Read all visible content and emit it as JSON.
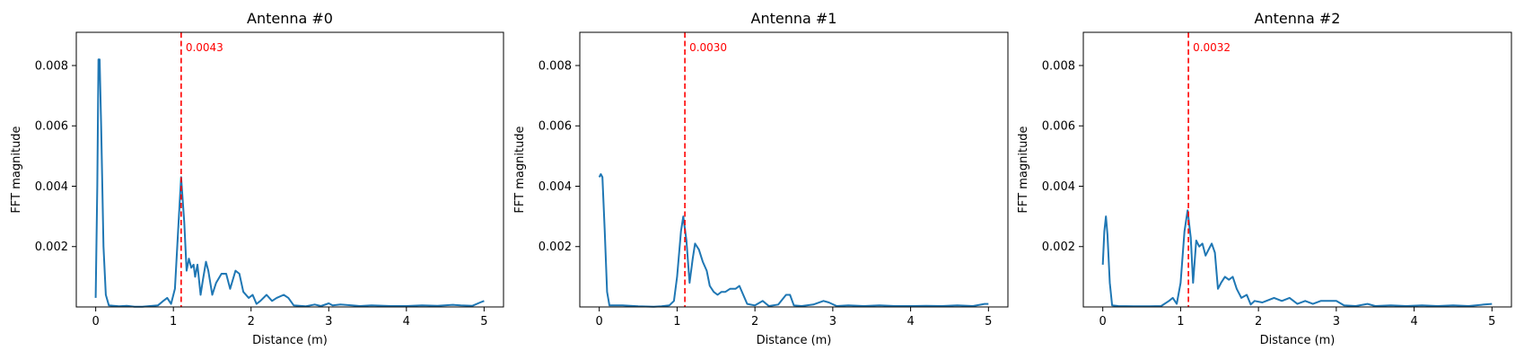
{
  "colors": {
    "series": "#1f77b4",
    "marker": "#ff0000"
  },
  "chart_data": [
    {
      "type": "line",
      "title": "Antenna #0",
      "xlabel": "Distance (m)",
      "ylabel": "FFT magnitude",
      "xlim": [
        -0.25,
        5.25
      ],
      "ylim": [
        0,
        0.0091
      ],
      "xticks": [
        0,
        1,
        2,
        3,
        4,
        5
      ],
      "yticks": [
        0.002,
        0.004,
        0.006,
        0.008
      ],
      "marker_x": 1.1,
      "marker_label": "0.0043",
      "series": [
        {
          "name": "Antenna #0",
          "points": [
            [
              0.0,
              0.0003
            ],
            [
              0.02,
              0.004
            ],
            [
              0.035,
              0.0082
            ],
            [
              0.05,
              0.0082
            ],
            [
              0.07,
              0.006
            ],
            [
              0.1,
              0.002
            ],
            [
              0.13,
              0.0004
            ],
            [
              0.17,
              5e-05
            ],
            [
              0.3,
              2e-05
            ],
            [
              0.4,
              4e-05
            ],
            [
              0.5,
              1e-05
            ],
            [
              0.6,
              1e-05
            ],
            [
              0.8,
              5e-05
            ],
            [
              0.87,
              0.0002
            ],
            [
              0.92,
              0.0003
            ],
            [
              0.97,
              0.0001
            ],
            [
              1.02,
              0.0006
            ],
            [
              1.06,
              0.0025
            ],
            [
              1.1,
              0.0043
            ],
            [
              1.14,
              0.0028
            ],
            [
              1.17,
              0.0012
            ],
            [
              1.2,
              0.0016
            ],
            [
              1.23,
              0.0013
            ],
            [
              1.26,
              0.0014
            ],
            [
              1.28,
              0.001
            ],
            [
              1.31,
              0.0014
            ],
            [
              1.35,
              0.0004
            ],
            [
              1.38,
              0.0009
            ],
            [
              1.42,
              0.0015
            ],
            [
              1.45,
              0.0012
            ],
            [
              1.5,
              0.0004
            ],
            [
              1.55,
              0.0008
            ],
            [
              1.62,
              0.0011
            ],
            [
              1.68,
              0.0011
            ],
            [
              1.73,
              0.0006
            ],
            [
              1.8,
              0.0012
            ],
            [
              1.85,
              0.0011
            ],
            [
              1.9,
              0.0005
            ],
            [
              1.97,
              0.0003
            ],
            [
              2.02,
              0.0004
            ],
            [
              2.07,
              0.0001
            ],
            [
              2.12,
              0.0002
            ],
            [
              2.2,
              0.0004
            ],
            [
              2.27,
              0.0002
            ],
            [
              2.33,
              0.0003
            ],
            [
              2.42,
              0.0004
            ],
            [
              2.48,
              0.0003
            ],
            [
              2.55,
              5e-05
            ],
            [
              2.7,
              2e-05
            ],
            [
              2.82,
              8e-05
            ],
            [
              2.9,
              3e-05
            ],
            [
              3.0,
              0.00012
            ],
            [
              3.05,
              5e-05
            ],
            [
              3.15,
              8e-05
            ],
            [
              3.3,
              5e-05
            ],
            [
              3.4,
              3e-05
            ],
            [
              3.55,
              5e-05
            ],
            [
              3.8,
              3e-05
            ],
            [
              4.0,
              3e-05
            ],
            [
              4.2,
              5e-05
            ],
            [
              4.4,
              4e-05
            ],
            [
              4.6,
              7e-05
            ],
            [
              4.7,
              5e-05
            ],
            [
              4.85,
              4e-05
            ],
            [
              4.95,
              0.00015
            ],
            [
              5.0,
              0.0002
            ]
          ]
        }
      ]
    },
    {
      "type": "line",
      "title": "Antenna #1",
      "xlabel": "Distance (m)",
      "ylabel": "FFT magnitude",
      "xlim": [
        -0.25,
        5.25
      ],
      "ylim": [
        0,
        0.0091
      ],
      "xticks": [
        0,
        1,
        2,
        3,
        4,
        5
      ],
      "yticks": [
        0.002,
        0.004,
        0.006,
        0.008
      ],
      "marker_x": 1.1,
      "marker_label": "0.0030",
      "series": [
        {
          "name": "Antenna #1",
          "points": [
            [
              0.0,
              0.0043
            ],
            [
              0.02,
              0.0044
            ],
            [
              0.04,
              0.0043
            ],
            [
              0.07,
              0.0025
            ],
            [
              0.1,
              0.0005
            ],
            [
              0.13,
              5e-05
            ],
            [
              0.3,
              5e-05
            ],
            [
              0.5,
              2e-05
            ],
            [
              0.7,
              1e-05
            ],
            [
              0.8,
              2e-05
            ],
            [
              0.9,
              5e-05
            ],
            [
              0.96,
              0.0002
            ],
            [
              1.0,
              0.001
            ],
            [
              1.05,
              0.0025
            ],
            [
              1.08,
              0.003
            ],
            [
              1.12,
              0.0022
            ],
            [
              1.16,
              0.0008
            ],
            [
              1.2,
              0.0016
            ],
            [
              1.23,
              0.0021
            ],
            [
              1.28,
              0.0019
            ],
            [
              1.33,
              0.0015
            ],
            [
              1.38,
              0.0012
            ],
            [
              1.42,
              0.0007
            ],
            [
              1.47,
              0.0005
            ],
            [
              1.52,
              0.0004
            ],
            [
              1.57,
              0.0005
            ],
            [
              1.62,
              0.0005
            ],
            [
              1.68,
              0.0006
            ],
            [
              1.75,
              0.0006
            ],
            [
              1.8,
              0.0007
            ],
            [
              1.85,
              0.0004
            ],
            [
              1.9,
              0.0001
            ],
            [
              2.0,
              5e-05
            ],
            [
              2.1,
              0.0002
            ],
            [
              2.18,
              3e-05
            ],
            [
              2.3,
              8e-05
            ],
            [
              2.4,
              0.0004
            ],
            [
              2.45,
              0.0004
            ],
            [
              2.5,
              5e-05
            ],
            [
              2.6,
              3e-05
            ],
            [
              2.75,
              8e-05
            ],
            [
              2.88,
              0.0002
            ],
            [
              2.95,
              0.00015
            ],
            [
              3.05,
              3e-05
            ],
            [
              3.2,
              5e-05
            ],
            [
              3.4,
              3e-05
            ],
            [
              3.6,
              5e-05
            ],
            [
              3.8,
              3e-05
            ],
            [
              4.0,
              3e-05
            ],
            [
              4.2,
              4e-05
            ],
            [
              4.4,
              3e-05
            ],
            [
              4.6,
              5e-05
            ],
            [
              4.8,
              3e-05
            ],
            [
              4.95,
              0.0001
            ],
            [
              5.0,
              0.0001
            ]
          ]
        }
      ]
    },
    {
      "type": "line",
      "title": "Antenna #2",
      "xlabel": "Distance (m)",
      "ylabel": "FFT magnitude",
      "xlim": [
        -0.25,
        5.25
      ],
      "ylim": [
        0,
        0.0091
      ],
      "xticks": [
        0,
        1,
        2,
        3,
        4,
        5
      ],
      "yticks": [
        0.002,
        0.004,
        0.006,
        0.008
      ],
      "marker_x": 1.1,
      "marker_label": "0.0032",
      "series": [
        {
          "name": "Antenna #2",
          "points": [
            [
              0.0,
              0.0014
            ],
            [
              0.02,
              0.0025
            ],
            [
              0.04,
              0.003
            ],
            [
              0.06,
              0.0024
            ],
            [
              0.09,
              0.0008
            ],
            [
              0.12,
              5e-05
            ],
            [
              0.2,
              3e-05
            ],
            [
              0.4,
              2e-05
            ],
            [
              0.6,
              2e-05
            ],
            [
              0.75,
              3e-05
            ],
            [
              0.85,
              0.0002
            ],
            [
              0.9,
              0.0003
            ],
            [
              0.95,
              0.0001
            ],
            [
              1.0,
              0.0008
            ],
            [
              1.05,
              0.0025
            ],
            [
              1.09,
              0.0032
            ],
            [
              1.13,
              0.0023
            ],
            [
              1.16,
              0.0008
            ],
            [
              1.2,
              0.0022
            ],
            [
              1.24,
              0.002
            ],
            [
              1.28,
              0.0021
            ],
            [
              1.32,
              0.0017
            ],
            [
              1.36,
              0.0019
            ],
            [
              1.4,
              0.0021
            ],
            [
              1.44,
              0.0018
            ],
            [
              1.48,
              0.0006
            ],
            [
              1.52,
              0.0008
            ],
            [
              1.57,
              0.001
            ],
            [
              1.62,
              0.0009
            ],
            [
              1.67,
              0.001
            ],
            [
              1.72,
              0.0006
            ],
            [
              1.78,
              0.0003
            ],
            [
              1.85,
              0.0004
            ],
            [
              1.9,
              8e-05
            ],
            [
              1.95,
              0.0002
            ],
            [
              2.05,
              0.00015
            ],
            [
              2.1,
              0.0002
            ],
            [
              2.2,
              0.0003
            ],
            [
              2.3,
              0.0002
            ],
            [
              2.4,
              0.0003
            ],
            [
              2.5,
              0.0001
            ],
            [
              2.6,
              0.0002
            ],
            [
              2.7,
              0.0001
            ],
            [
              2.8,
              0.0002
            ],
            [
              2.9,
              0.0002
            ],
            [
              3.0,
              0.0002
            ],
            [
              3.1,
              5e-05
            ],
            [
              3.25,
              3e-05
            ],
            [
              3.4,
              0.0001
            ],
            [
              3.5,
              3e-05
            ],
            [
              3.7,
              5e-05
            ],
            [
              3.9,
              3e-05
            ],
            [
              4.1,
              5e-05
            ],
            [
              4.3,
              3e-05
            ],
            [
              4.5,
              5e-05
            ],
            [
              4.7,
              3e-05
            ],
            [
              4.9,
              8e-05
            ],
            [
              5.0,
              0.0001
            ]
          ]
        }
      ]
    }
  ]
}
